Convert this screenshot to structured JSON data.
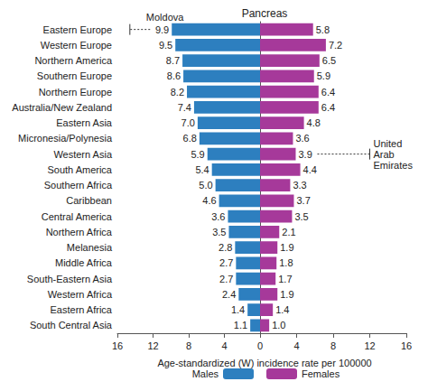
{
  "chart_data": {
    "type": "bar",
    "orientation": "horizontal",
    "title": "Pancreas",
    "xlabel": "Age-standardized (W) incidence rate per 100000",
    "categories": [
      "Eastern Europe",
      "Western Europe",
      "Northern America",
      "Southern Europe",
      "Northern Europe",
      "Australia/New Zealand",
      "Eastern Asia",
      "Micronesia/Polynesia",
      "Western Asia",
      "South America",
      "Southern Africa",
      "Caribbean",
      "Central America",
      "Northern Africa",
      "Melanesia",
      "Middle Africa",
      "South-Eastern Asia",
      "Western Africa",
      "Eastern Africa",
      "South Central Asia"
    ],
    "series": [
      {
        "name": "Males",
        "color": "#2d7fbf",
        "values": [
          9.9,
          9.5,
          8.7,
          8.6,
          8.2,
          7.4,
          7.0,
          6.8,
          5.9,
          5.4,
          5.0,
          4.6,
          3.6,
          3.5,
          2.8,
          2.7,
          2.7,
          2.4,
          1.4,
          1.1
        ],
        "value_labels": [
          "9.9",
          "9.5",
          "8.7",
          "8.6",
          "8.2",
          "7.4",
          "7.0",
          "6.8",
          "5.9",
          "5.4",
          "5.0",
          "4.6",
          "3.6",
          "3.5",
          "2.8",
          "2.7",
          "2.7",
          "2.4",
          "1.4",
          "1.1"
        ]
      },
      {
        "name": "Females",
        "color": "#a6399a",
        "values": [
          5.8,
          7.2,
          6.5,
          5.9,
          6.4,
          6.4,
          4.8,
          3.6,
          3.9,
          4.4,
          3.3,
          3.7,
          3.5,
          2.1,
          1.9,
          1.8,
          1.7,
          1.9,
          1.4,
          1.0
        ],
        "value_labels": [
          "5.8",
          "7.2",
          "6.5",
          "5.9",
          "6.4",
          "6.4",
          "4.8",
          "3.6",
          "3.9",
          "4.4",
          "3.3",
          "3.7",
          "3.5",
          "2.1",
          "1.9",
          "1.8",
          "1.7",
          "1.9",
          "1.4",
          "1.0"
        ]
      }
    ],
    "xlim": [
      0,
      16
    ],
    "xticks": [
      0,
      4,
      8,
      12,
      16
    ],
    "annotations": [
      {
        "text": "Moldova",
        "series": "Males",
        "category": "Eastern Europe",
        "value": 14.6
      },
      {
        "text": "United Arab Emirates",
        "series": "Females",
        "category": "Western Asia",
        "value": 12.0
      }
    ],
    "data_labels": true,
    "grid": false,
    "legend": "bottom"
  }
}
